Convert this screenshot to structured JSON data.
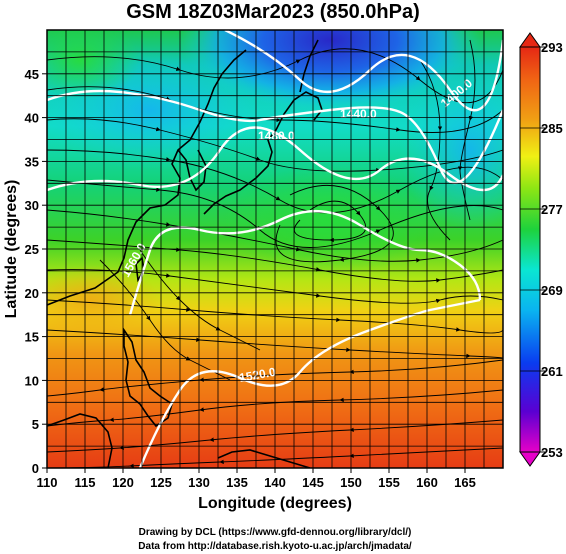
{
  "title": "GSM 18Z03Mar2023 (850.0hPa)",
  "x_axis": {
    "label": "Longitude (degrees)",
    "range": [
      110,
      170
    ],
    "ticks": [
      "110",
      "115",
      "120",
      "125",
      "130",
      "135",
      "140",
      "145",
      "150",
      "155",
      "160",
      "165"
    ]
  },
  "y_axis": {
    "label": "Latitude (degrees)",
    "range": [
      0,
      50
    ],
    "ticks": [
      "0",
      "5",
      "10",
      "15",
      "20",
      "25",
      "30",
      "35",
      "40",
      "45"
    ]
  },
  "colorbar": {
    "range": [
      253,
      293
    ],
    "ticks": [
      "253",
      "261",
      "269",
      "277",
      "285",
      "293"
    ],
    "colors": [
      "#e600c8",
      "#5a00d2",
      "#0a3cf0",
      "#0ab4f0",
      "#0ae6d2",
      "#1ed23c",
      "#8ce614",
      "#f0f014",
      "#f0a014",
      "#f06414",
      "#e62814"
    ]
  },
  "contour_labels": [
    "1440.0",
    "1480.0",
    "1560.0",
    "1520.0",
    "1400.0"
  ],
  "credits": {
    "line1": "Drawing by DCL (https://www.gfd-dennou.org/library/dcl/)",
    "line2": "Data from http://database.rish.kyoto-u.ac.jp/arch/jmadata/"
  }
}
